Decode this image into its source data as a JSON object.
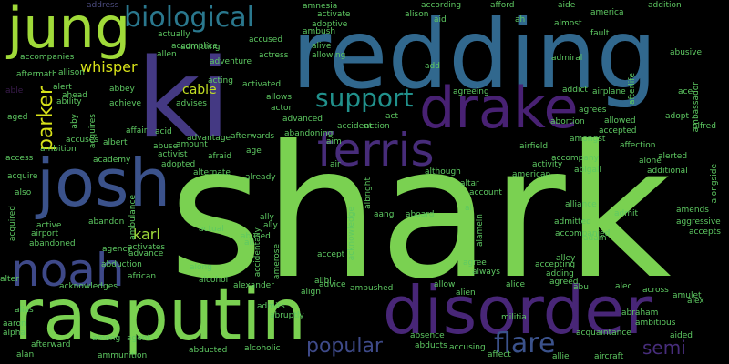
{
  "words": [
    {
      "text": "shark",
      "color": "#7ad151"
    },
    {
      "text": "redding",
      "color": "#31688e"
    },
    {
      "text": "ki",
      "color": "#443983"
    },
    {
      "text": "rasputin",
      "color": "#7ad151"
    },
    {
      "text": "disorder",
      "color": "#482677"
    },
    {
      "text": "josh",
      "color": "#3b528b"
    },
    {
      "text": "jung",
      "color": "#a0da39"
    },
    {
      "text": "drake",
      "color": "#482173"
    },
    {
      "text": "noah",
      "color": "#3e4989"
    },
    {
      "text": "ferris",
      "color": "#472c7a"
    },
    {
      "text": "biological",
      "color": "#2a788e"
    },
    {
      "text": "support",
      "color": "#21918c"
    },
    {
      "text": "popular",
      "color": "#3e4a89"
    },
    {
      "text": "flare",
      "color": "#3b528b"
    },
    {
      "text": "parker",
      "color": "#d8e219"
    },
    {
      "text": "whisper",
      "color": "#d8e219"
    },
    {
      "text": "semi",
      "color": "#472d7b"
    },
    {
      "text": "karl",
      "color": "#9fda3a"
    },
    {
      "text": "cable",
      "color": "#c2df23"
    },
    {
      "text": "address",
      "color": "#4c4c7f"
    },
    {
      "text": "accompanies",
      "color": "#5ec962"
    },
    {
      "text": "aftermath",
      "color": "#5ec962"
    },
    {
      "text": "allison",
      "color": "#5ec962"
    },
    {
      "text": "alert",
      "color": "#5ec962"
    },
    {
      "text": "able",
      "color": "#3b1c4e"
    },
    {
      "text": "ahead",
      "color": "#5ec962"
    },
    {
      "text": "aged",
      "color": "#5ec962"
    },
    {
      "text": "ability",
      "color": "#5ec962"
    },
    {
      "text": "aby",
      "color": "#5ec962"
    },
    {
      "text": "acquires",
      "color": "#5ec962"
    },
    {
      "text": "abbey",
      "color": "#5ec962"
    },
    {
      "text": "achieve",
      "color": "#5ec962"
    },
    {
      "text": "ambition",
      "color": "#5ec962"
    },
    {
      "text": "accuses",
      "color": "#5ec962"
    },
    {
      "text": "albert",
      "color": "#5ec962"
    },
    {
      "text": "affair",
      "color": "#5ec962"
    },
    {
      "text": "access",
      "color": "#5ec962"
    },
    {
      "text": "academy",
      "color": "#5ec962"
    },
    {
      "text": "acquire",
      "color": "#5ec962"
    },
    {
      "text": "also",
      "color": "#5ec962"
    },
    {
      "text": "acquired",
      "color": "#5ec962"
    },
    {
      "text": "active",
      "color": "#5ec962"
    },
    {
      "text": "airport",
      "color": "#5ec962"
    },
    {
      "text": "abandon",
      "color": "#5ec962"
    },
    {
      "text": "abandoned",
      "color": "#5ec962"
    },
    {
      "text": "alter",
      "color": "#5ec962"
    },
    {
      "text": "alias",
      "color": "#5ec962"
    },
    {
      "text": "acknowledges",
      "color": "#5ec962"
    },
    {
      "text": "aaron",
      "color": "#5ec962"
    },
    {
      "text": "alpha",
      "color": "#5ec962"
    },
    {
      "text": "afterward",
      "color": "#5ec962"
    },
    {
      "text": "alan",
      "color": "#5ec962"
    },
    {
      "text": "ammunition",
      "color": "#5ec962"
    },
    {
      "text": "among",
      "color": "#5ec962"
    },
    {
      "text": "agent",
      "color": "#5ec962"
    },
    {
      "text": "african",
      "color": "#5ec962"
    },
    {
      "text": "ambulance",
      "color": "#5ec962"
    },
    {
      "text": "advance",
      "color": "#5ec962"
    },
    {
      "text": "abduction",
      "color": "#5ec962"
    },
    {
      "text": "agency",
      "color": "#5ec962"
    },
    {
      "text": "activates",
      "color": "#5ec962"
    },
    {
      "text": "actually",
      "color": "#5ec962"
    },
    {
      "text": "accomplice",
      "color": "#5ec962"
    },
    {
      "text": "allen",
      "color": "#5ec962"
    },
    {
      "text": "acting",
      "color": "#5ec962"
    },
    {
      "text": "admitting",
      "color": "#5ec962"
    },
    {
      "text": "adventure",
      "color": "#5ec962"
    },
    {
      "text": "advises",
      "color": "#5ec962"
    },
    {
      "text": "acid",
      "color": "#5ec962"
    },
    {
      "text": "abuse",
      "color": "#5ec962"
    },
    {
      "text": "advantage",
      "color": "#5ec962"
    },
    {
      "text": "amount",
      "color": "#5ec962"
    },
    {
      "text": "activist",
      "color": "#5ec962"
    },
    {
      "text": "adopted",
      "color": "#5ec962"
    },
    {
      "text": "afraid",
      "color": "#5ec962"
    },
    {
      "text": "afterwards",
      "color": "#5ec962"
    },
    {
      "text": "alternate",
      "color": "#5ec962"
    },
    {
      "text": "age",
      "color": "#5ec962"
    },
    {
      "text": "amnesia",
      "color": "#5ec962"
    },
    {
      "text": "activate",
      "color": "#5ec962"
    },
    {
      "text": "adoptive",
      "color": "#5ec962"
    },
    {
      "text": "ambush",
      "color": "#5ec962"
    },
    {
      "text": "actress",
      "color": "#5ec962"
    },
    {
      "text": "alive",
      "color": "#5ec962"
    },
    {
      "text": "allowing",
      "color": "#5ec962"
    },
    {
      "text": "activated",
      "color": "#5ec962"
    },
    {
      "text": "accused",
      "color": "#5ec962"
    },
    {
      "text": "allows",
      "color": "#5ec962"
    },
    {
      "text": "actor",
      "color": "#5ec962"
    },
    {
      "text": "advanced",
      "color": "#5ec962"
    },
    {
      "text": "abandoning",
      "color": "#5ec962"
    },
    {
      "text": "aim",
      "color": "#5ec962"
    },
    {
      "text": "air",
      "color": "#5ec962"
    },
    {
      "text": "already",
      "color": "#5ec962"
    },
    {
      "text": "ally",
      "color": "#5ec962"
    },
    {
      "text": "actual",
      "color": "#5ec962"
    },
    {
      "text": "abused",
      "color": "#5ec962"
    },
    {
      "text": "all",
      "color": "#5ec962"
    },
    {
      "text": "along",
      "color": "#5ec962"
    },
    {
      "text": "alcohol",
      "color": "#5ec962"
    },
    {
      "text": "alexander",
      "color": "#5ec962"
    },
    {
      "text": "admits",
      "color": "#5ec962"
    },
    {
      "text": "abruptly",
      "color": "#5ec962"
    },
    {
      "text": "abducted",
      "color": "#5ec962"
    },
    {
      "text": "alcoholic",
      "color": "#5ec962"
    },
    {
      "text": "accidentally",
      "color": "#5ec962"
    },
    {
      "text": "amerose",
      "color": "#5ec962"
    },
    {
      "text": "align",
      "color": "#5ec962"
    },
    {
      "text": "accept",
      "color": "#5ec962"
    },
    {
      "text": "advice",
      "color": "#5ec962"
    },
    {
      "text": "ambushed",
      "color": "#5ec962"
    },
    {
      "text": "according",
      "color": "#5ec962"
    },
    {
      "text": "alison",
      "color": "#5ec962"
    },
    {
      "text": "add",
      "color": "#5ec962"
    },
    {
      "text": "agreeing",
      "color": "#5ec962"
    },
    {
      "text": "accident",
      "color": "#5ec962"
    },
    {
      "text": "act",
      "color": "#5ec962"
    },
    {
      "text": "action",
      "color": "#5ec962"
    },
    {
      "text": "although",
      "color": "#5ec962"
    },
    {
      "text": "altar",
      "color": "#5ec962"
    },
    {
      "text": "account",
      "color": "#5ec962"
    },
    {
      "text": "albright",
      "color": "#5ec962"
    },
    {
      "text": "acknowledge",
      "color": "#5ec962"
    },
    {
      "text": "aang",
      "color": "#5ec962"
    },
    {
      "text": "aboard",
      "color": "#5ec962"
    },
    {
      "text": "al",
      "color": "#5ec962"
    },
    {
      "text": "alamein",
      "color": "#5ec962"
    },
    {
      "text": "agree",
      "color": "#5ec962"
    },
    {
      "text": "always",
      "color": "#5ec962"
    },
    {
      "text": "allow",
      "color": "#5ec962"
    },
    {
      "text": "alien",
      "color": "#5ec962"
    },
    {
      "text": "alice",
      "color": "#5ec962"
    },
    {
      "text": "militia",
      "color": "#5ec962"
    },
    {
      "text": "absence",
      "color": "#5ec962"
    },
    {
      "text": "abducts",
      "color": "#5ec962"
    },
    {
      "text": "accusing",
      "color": "#5ec962"
    },
    {
      "text": "affect",
      "color": "#5ec962"
    },
    {
      "text": "aid",
      "color": "#5ec962"
    },
    {
      "text": "afford",
      "color": "#5ec962"
    },
    {
      "text": "ah",
      "color": "#5ec962"
    },
    {
      "text": "aide",
      "color": "#5ec962"
    },
    {
      "text": "america",
      "color": "#5ec962"
    },
    {
      "text": "addition",
      "color": "#5ec962"
    },
    {
      "text": "fault",
      "color": "#5ec962"
    },
    {
      "text": "almost",
      "color": "#5ec962"
    },
    {
      "text": "abusive",
      "color": "#5ec962"
    },
    {
      "text": "admiral",
      "color": "#5ec962"
    },
    {
      "text": "afterlife",
      "color": "#5ec962"
    },
    {
      "text": "addict",
      "color": "#5ec962"
    },
    {
      "text": "airplane",
      "color": "#5ec962"
    },
    {
      "text": "ace",
      "color": "#5ec962"
    },
    {
      "text": "ambassador",
      "color": "#5ec962"
    },
    {
      "text": "agrees",
      "color": "#5ec962"
    },
    {
      "text": "adopt",
      "color": "#5ec962"
    },
    {
      "text": "allowed",
      "color": "#5ec962"
    },
    {
      "text": "abortion",
      "color": "#5ec962"
    },
    {
      "text": "accepted",
      "color": "#5ec962"
    },
    {
      "text": "alfred",
      "color": "#5ec962"
    },
    {
      "text": "amongst",
      "color": "#5ec962"
    },
    {
      "text": "affection",
      "color": "#5ec962"
    },
    {
      "text": "airfield",
      "color": "#5ec962"
    },
    {
      "text": "accompany",
      "color": "#5ec962"
    },
    {
      "text": "activity",
      "color": "#5ec962"
    },
    {
      "text": "alerted",
      "color": "#5ec962"
    },
    {
      "text": "alone",
      "color": "#5ec962"
    },
    {
      "text": "american",
      "color": "#5ec962"
    },
    {
      "text": "abigail",
      "color": "#5ec962"
    },
    {
      "text": "additional",
      "color": "#5ec962"
    },
    {
      "text": "alongside",
      "color": "#5ec962"
    },
    {
      "text": "alliance",
      "color": "#5ec962"
    },
    {
      "text": "admit",
      "color": "#5ec962"
    },
    {
      "text": "admitted",
      "color": "#5ec962"
    },
    {
      "text": "accompanied",
      "color": "#5ec962"
    },
    {
      "text": "amends",
      "color": "#5ec962"
    },
    {
      "text": "aggressive",
      "color": "#5ec962"
    },
    {
      "text": "accepts",
      "color": "#5ec962"
    },
    {
      "text": "adam",
      "color": "#5ec962"
    },
    {
      "text": "alley",
      "color": "#5ec962"
    },
    {
      "text": "accepting",
      "color": "#5ec962"
    },
    {
      "text": "adding",
      "color": "#5ec962"
    },
    {
      "text": "agreed",
      "color": "#5ec962"
    },
    {
      "text": "abu",
      "color": "#5ec962"
    },
    {
      "text": "alec",
      "color": "#5ec962"
    },
    {
      "text": "across",
      "color": "#5ec962"
    },
    {
      "text": "amulet",
      "color": "#5ec962"
    },
    {
      "text": "alex",
      "color": "#5ec962"
    },
    {
      "text": "abraham",
      "color": "#5ec962"
    },
    {
      "text": "ambitious",
      "color": "#5ec962"
    },
    {
      "text": "acquaintance",
      "color": "#5ec962"
    },
    {
      "text": "aided",
      "color": "#5ec962"
    },
    {
      "text": "allie",
      "color": "#5ec962"
    },
    {
      "text": "aircraft",
      "color": "#5ec962"
    },
    {
      "text": "ally",
      "color": "#5ec962"
    },
    {
      "text": "alibi",
      "color": "#5ec962"
    }
  ]
}
